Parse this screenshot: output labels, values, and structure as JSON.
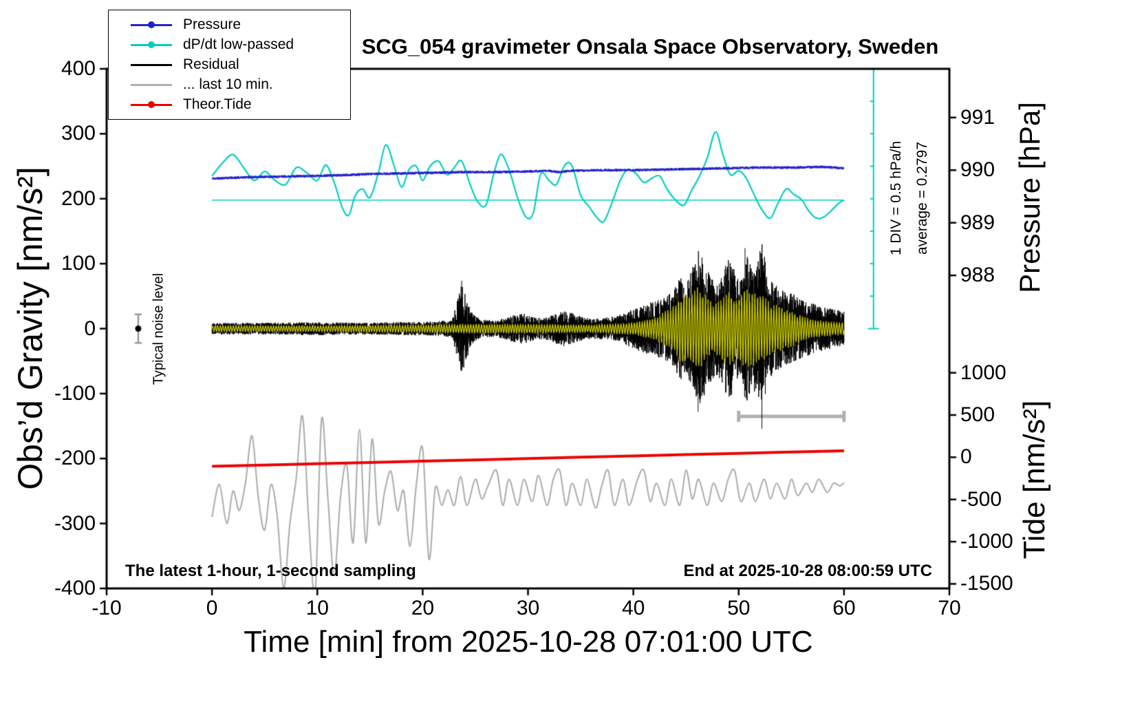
{
  "chart_data": {
    "type": "line",
    "title": "SCG_054 gravimeter Onsala Space Observatory, Sweden",
    "xlabel": "Time [min] from 2025-10-28 07:01:00 UTC",
    "ylabel": "Obs’d Gravity [nm/s²]",
    "xlim": [
      -10,
      70
    ],
    "ylim": [
      -400,
      400
    ],
    "x_ticks": [
      -10,
      0,
      10,
      20,
      30,
      40,
      50,
      60,
      70
    ],
    "y_ticks": [
      400,
      300,
      200,
      100,
      0,
      -100,
      -200,
      -300,
      -400
    ],
    "pressure_axis": {
      "label": "Pressure [hPa]",
      "ticks": [
        991,
        990,
        989,
        988
      ],
      "gravity_at_990": 244,
      "gravity_per_hpa": 81
    },
    "tide_axis": {
      "label": "Tide [nm/s²]",
      "ticks": [
        1000,
        500,
        0,
        -500,
        -1000,
        -1500
      ],
      "gravity_at_zero": -198,
      "gravity_per_unit": 0.13
    },
    "legend": [
      {
        "label": "Pressure",
        "color": "#2121cd",
        "marker": "dot"
      },
      {
        "label": "dP/dt low-passed",
        "color": "#00cdc4",
        "marker": "dot"
      },
      {
        "label": "Residual",
        "color": "#000000",
        "marker": "line"
      },
      {
        "label": "... last 10 min.",
        "color": "#b0b0b0",
        "marker": "line"
      },
      {
        "label": "Theor.Tide",
        "color": "#ec0000",
        "marker": "dot"
      }
    ],
    "series": {
      "pressure": {
        "color": "#2121cd",
        "points": [
          [
            0,
            231
          ],
          [
            3,
            233
          ],
          [
            6,
            234
          ],
          [
            9,
            235
          ],
          [
            12,
            236
          ],
          [
            15,
            238
          ],
          [
            18,
            239
          ],
          [
            21,
            240
          ],
          [
            24,
            241
          ],
          [
            27,
            241
          ],
          [
            30,
            242
          ],
          [
            32,
            243
          ],
          [
            33,
            241
          ],
          [
            34,
            243
          ],
          [
            37,
            244
          ],
          [
            40,
            244
          ],
          [
            43,
            245
          ],
          [
            46,
            246
          ],
          [
            49,
            247
          ],
          [
            52,
            248
          ],
          [
            55,
            248
          ],
          [
            58,
            249
          ],
          [
            60,
            247
          ]
        ]
      },
      "dpdt": {
        "color": "#00cdc4",
        "baseline": 198,
        "points": [
          [
            0,
            235
          ],
          [
            1,
            255
          ],
          [
            2,
            268
          ],
          [
            3,
            248
          ],
          [
            4,
            228
          ],
          [
            5,
            242
          ],
          [
            6,
            228
          ],
          [
            7,
            222
          ],
          [
            8,
            248
          ],
          [
            9,
            240
          ],
          [
            10,
            228
          ],
          [
            10.8,
            252
          ],
          [
            11.6,
            225
          ],
          [
            12.4,
            185
          ],
          [
            13,
            175
          ],
          [
            13.6,
            205
          ],
          [
            14.3,
            215
          ],
          [
            15,
            202
          ],
          [
            15.8,
            240
          ],
          [
            16.5,
            283
          ],
          [
            17.3,
            250
          ],
          [
            18,
            218
          ],
          [
            18.7,
            245
          ],
          [
            19.4,
            250
          ],
          [
            20,
            228
          ],
          [
            20.7,
            250
          ],
          [
            21.5,
            258
          ],
          [
            22.3,
            237
          ],
          [
            23,
            248
          ],
          [
            23.7,
            258
          ],
          [
            24.5,
            222
          ],
          [
            25.2,
            196
          ],
          [
            26,
            190
          ],
          [
            26.7,
            235
          ],
          [
            27.4,
            268
          ],
          [
            28.2,
            245
          ],
          [
            29,
            202
          ],
          [
            29.8,
            172
          ],
          [
            30.5,
            178
          ],
          [
            31.2,
            238
          ],
          [
            32,
            228
          ],
          [
            32.7,
            222
          ],
          [
            33.5,
            252
          ],
          [
            34.2,
            250
          ],
          [
            35,
            205
          ],
          [
            35.8,
            188
          ],
          [
            36.5,
            172
          ],
          [
            37.2,
            165
          ],
          [
            38,
            195
          ],
          [
            38.8,
            230
          ],
          [
            39.5,
            245
          ],
          [
            40.3,
            238
          ],
          [
            41,
            225
          ],
          [
            41.8,
            232
          ],
          [
            42.5,
            235
          ],
          [
            43.2,
            215
          ],
          [
            44,
            198
          ],
          [
            44.8,
            190
          ],
          [
            45.5,
            212
          ],
          [
            46.2,
            232
          ],
          [
            47,
            262
          ],
          [
            47.8,
            303
          ],
          [
            48.5,
            268
          ],
          [
            49.2,
            237
          ],
          [
            50,
            243
          ],
          [
            50.7,
            232
          ],
          [
            51.5,
            205
          ],
          [
            52.2,
            183
          ],
          [
            53,
            170
          ],
          [
            53.7,
            192
          ],
          [
            54.5,
            215
          ],
          [
            55.2,
            207
          ],
          [
            56,
            198
          ],
          [
            56.7,
            180
          ],
          [
            57.4,
            170
          ],
          [
            58.1,
            172
          ],
          [
            58.8,
            182
          ],
          [
            59.5,
            193
          ],
          [
            60,
            198
          ]
        ]
      },
      "residual": {
        "color": "#000000",
        "seed": 42,
        "envelope": [
          [
            0,
            9
          ],
          [
            5,
            9
          ],
          [
            10,
            10
          ],
          [
            14,
            9
          ],
          [
            18,
            10
          ],
          [
            21,
            11
          ],
          [
            22.8,
            13
          ],
          [
            23.3,
            45
          ],
          [
            23.7,
            70
          ],
          [
            24.2,
            45
          ],
          [
            24.8,
            22
          ],
          [
            25.5,
            14
          ],
          [
            27,
            13
          ],
          [
            28.5,
            20
          ],
          [
            29.5,
            24
          ],
          [
            30.5,
            18
          ],
          [
            31.5,
            16
          ],
          [
            32.5,
            22
          ],
          [
            33.5,
            28
          ],
          [
            34.5,
            22
          ],
          [
            35.5,
            16
          ],
          [
            37,
            16
          ],
          [
            38.5,
            20
          ],
          [
            40,
            30
          ],
          [
            41,
            38
          ],
          [
            42,
            42
          ],
          [
            43,
            48
          ],
          [
            43.8,
            58
          ],
          [
            44.4,
            80
          ],
          [
            45,
            70
          ],
          [
            45.6,
            95
          ],
          [
            46.1,
            125
          ],
          [
            46.6,
            110
          ],
          [
            47.2,
            85
          ],
          [
            47.8,
            72
          ],
          [
            48.4,
            82
          ],
          [
            49,
            110
          ],
          [
            49.6,
            95
          ],
          [
            50.2,
            75
          ],
          [
            50.7,
            120
          ],
          [
            51.2,
            95
          ],
          [
            51.8,
            100
          ],
          [
            52.2,
            140
          ],
          [
            52.7,
            85
          ],
          [
            53.3,
            70
          ],
          [
            54,
            62
          ],
          [
            55,
            55
          ],
          [
            56,
            46
          ],
          [
            57,
            40
          ],
          [
            58,
            34
          ],
          [
            59,
            30
          ],
          [
            60,
            26
          ]
        ],
        "spikes": [
          [
            23.7,
            74
          ],
          [
            46.15,
            -128
          ],
          [
            50.6,
            124
          ],
          [
            52.2,
            -154
          ]
        ]
      },
      "residual_band": {
        "color": "#cdcd00",
        "period_min": 0.25,
        "envelope": [
          [
            0,
            4
          ],
          [
            10,
            4
          ],
          [
            20,
            5
          ],
          [
            24,
            6
          ],
          [
            30,
            6
          ],
          [
            36,
            5
          ],
          [
            40,
            8
          ],
          [
            42,
            14
          ],
          [
            43,
            22
          ],
          [
            44,
            32
          ],
          [
            44.6,
            48
          ],
          [
            45.2,
            42
          ],
          [
            46,
            55
          ],
          [
            46.8,
            45
          ],
          [
            47.6,
            32
          ],
          [
            48.4,
            42
          ],
          [
            49.2,
            50
          ],
          [
            50,
            40
          ],
          [
            50.6,
            55
          ],
          [
            51.4,
            48
          ],
          [
            52.2,
            44
          ],
          [
            53,
            34
          ],
          [
            54,
            30
          ],
          [
            55,
            24
          ],
          [
            56,
            16
          ],
          [
            57,
            12
          ],
          [
            58,
            10
          ],
          [
            59,
            9
          ],
          [
            60,
            8
          ]
        ]
      },
      "theor_tide": {
        "color": "#ec0000",
        "points": [
          [
            0,
            -212
          ],
          [
            10,
            -208
          ],
          [
            20,
            -204
          ],
          [
            30,
            -200
          ],
          [
            40,
            -196
          ],
          [
            50,
            -192
          ],
          [
            60,
            -188
          ]
        ]
      },
      "last10": {
        "color": "#b0b0b0",
        "points": [
          [
            0,
            -290
          ],
          [
            0.7,
            -240
          ],
          [
            1.4,
            -300
          ],
          [
            2,
            -250
          ],
          [
            2.6,
            -280
          ],
          [
            3.2,
            -235
          ],
          [
            3.8,
            -165
          ],
          [
            4.4,
            -260
          ],
          [
            5,
            -310
          ],
          [
            5.6,
            -240
          ],
          [
            6.2,
            -290
          ],
          [
            6.8,
            -400
          ],
          [
            7.4,
            -300
          ],
          [
            8,
            -230
          ],
          [
            8.6,
            -135
          ],
          [
            9.2,
            -300
          ],
          [
            9.8,
            -405
          ],
          [
            10.4,
            -140
          ],
          [
            11,
            -260
          ],
          [
            11.6,
            -380
          ],
          [
            12.2,
            -260
          ],
          [
            12.8,
            -210
          ],
          [
            13.4,
            -330
          ],
          [
            14,
            -155
          ],
          [
            14.6,
            -330
          ],
          [
            15.2,
            -170
          ],
          [
            15.8,
            -300
          ],
          [
            16.4,
            -250
          ],
          [
            17,
            -220
          ],
          [
            17.6,
            -280
          ],
          [
            18.2,
            -250
          ],
          [
            18.8,
            -335
          ],
          [
            19.4,
            -240
          ],
          [
            20,
            -185
          ],
          [
            20.6,
            -355
          ],
          [
            21.2,
            -245
          ],
          [
            21.8,
            -272
          ],
          [
            22.4,
            -248
          ],
          [
            23,
            -272
          ],
          [
            23.6,
            -228
          ],
          [
            24.2,
            -272
          ],
          [
            25,
            -232
          ],
          [
            25.6,
            -262
          ],
          [
            26.2,
            -242
          ],
          [
            27,
            -218
          ],
          [
            27.6,
            -272
          ],
          [
            28.2,
            -232
          ],
          [
            29,
            -272
          ],
          [
            29.6,
            -232
          ],
          [
            30.4,
            -266
          ],
          [
            31,
            -226
          ],
          [
            31.8,
            -272
          ],
          [
            32.4,
            -232
          ],
          [
            33,
            -218
          ],
          [
            33.6,
            -272
          ],
          [
            34.2,
            -238
          ],
          [
            35,
            -272
          ],
          [
            35.6,
            -232
          ],
          [
            36.4,
            -276
          ],
          [
            37,
            -242
          ],
          [
            37.6,
            -218
          ],
          [
            38.2,
            -272
          ],
          [
            39,
            -232
          ],
          [
            39.6,
            -272
          ],
          [
            40.4,
            -232
          ],
          [
            41,
            -218
          ],
          [
            41.6,
            -266
          ],
          [
            42.2,
            -238
          ],
          [
            43,
            -272
          ],
          [
            43.6,
            -232
          ],
          [
            44.4,
            -272
          ],
          [
            45,
            -218
          ],
          [
            45.6,
            -262
          ],
          [
            46.2,
            -232
          ],
          [
            47,
            -272
          ],
          [
            47.6,
            -238
          ],
          [
            48.4,
            -266
          ],
          [
            49,
            -232
          ],
          [
            49.6,
            -218
          ],
          [
            50.2,
            -266
          ],
          [
            51,
            -238
          ],
          [
            51.6,
            -266
          ],
          [
            52.4,
            -232
          ],
          [
            53,
            -262
          ],
          [
            53.6,
            -238
          ],
          [
            54.4,
            -262
          ],
          [
            55,
            -232
          ],
          [
            55.6,
            -257
          ],
          [
            56.4,
            -238
          ],
          [
            57,
            -252
          ],
          [
            57.6,
            -232
          ],
          [
            58.4,
            -252
          ],
          [
            59,
            -238
          ],
          [
            59.6,
            -242
          ],
          [
            60,
            -237
          ]
        ]
      }
    },
    "annotations": {
      "noise_label": "Typical noise level",
      "noise_marker": {
        "x": -7,
        "y": 0,
        "err": 22
      },
      "div_label": "1 DIV = 0.5 hPa/h",
      "avg_label": "average = 0.2797",
      "scalebar": {
        "x0": 50,
        "x1": 60,
        "y": -135
      },
      "cyan_axis": {
        "x": 62.8,
        "y_top": 400,
        "y_bottom": 0,
        "divisions": 8
      },
      "footer_left": "The latest 1-hour, 1-second sampling",
      "footer_right": "End at 2025-10-28 08:00:59 UTC"
    }
  }
}
